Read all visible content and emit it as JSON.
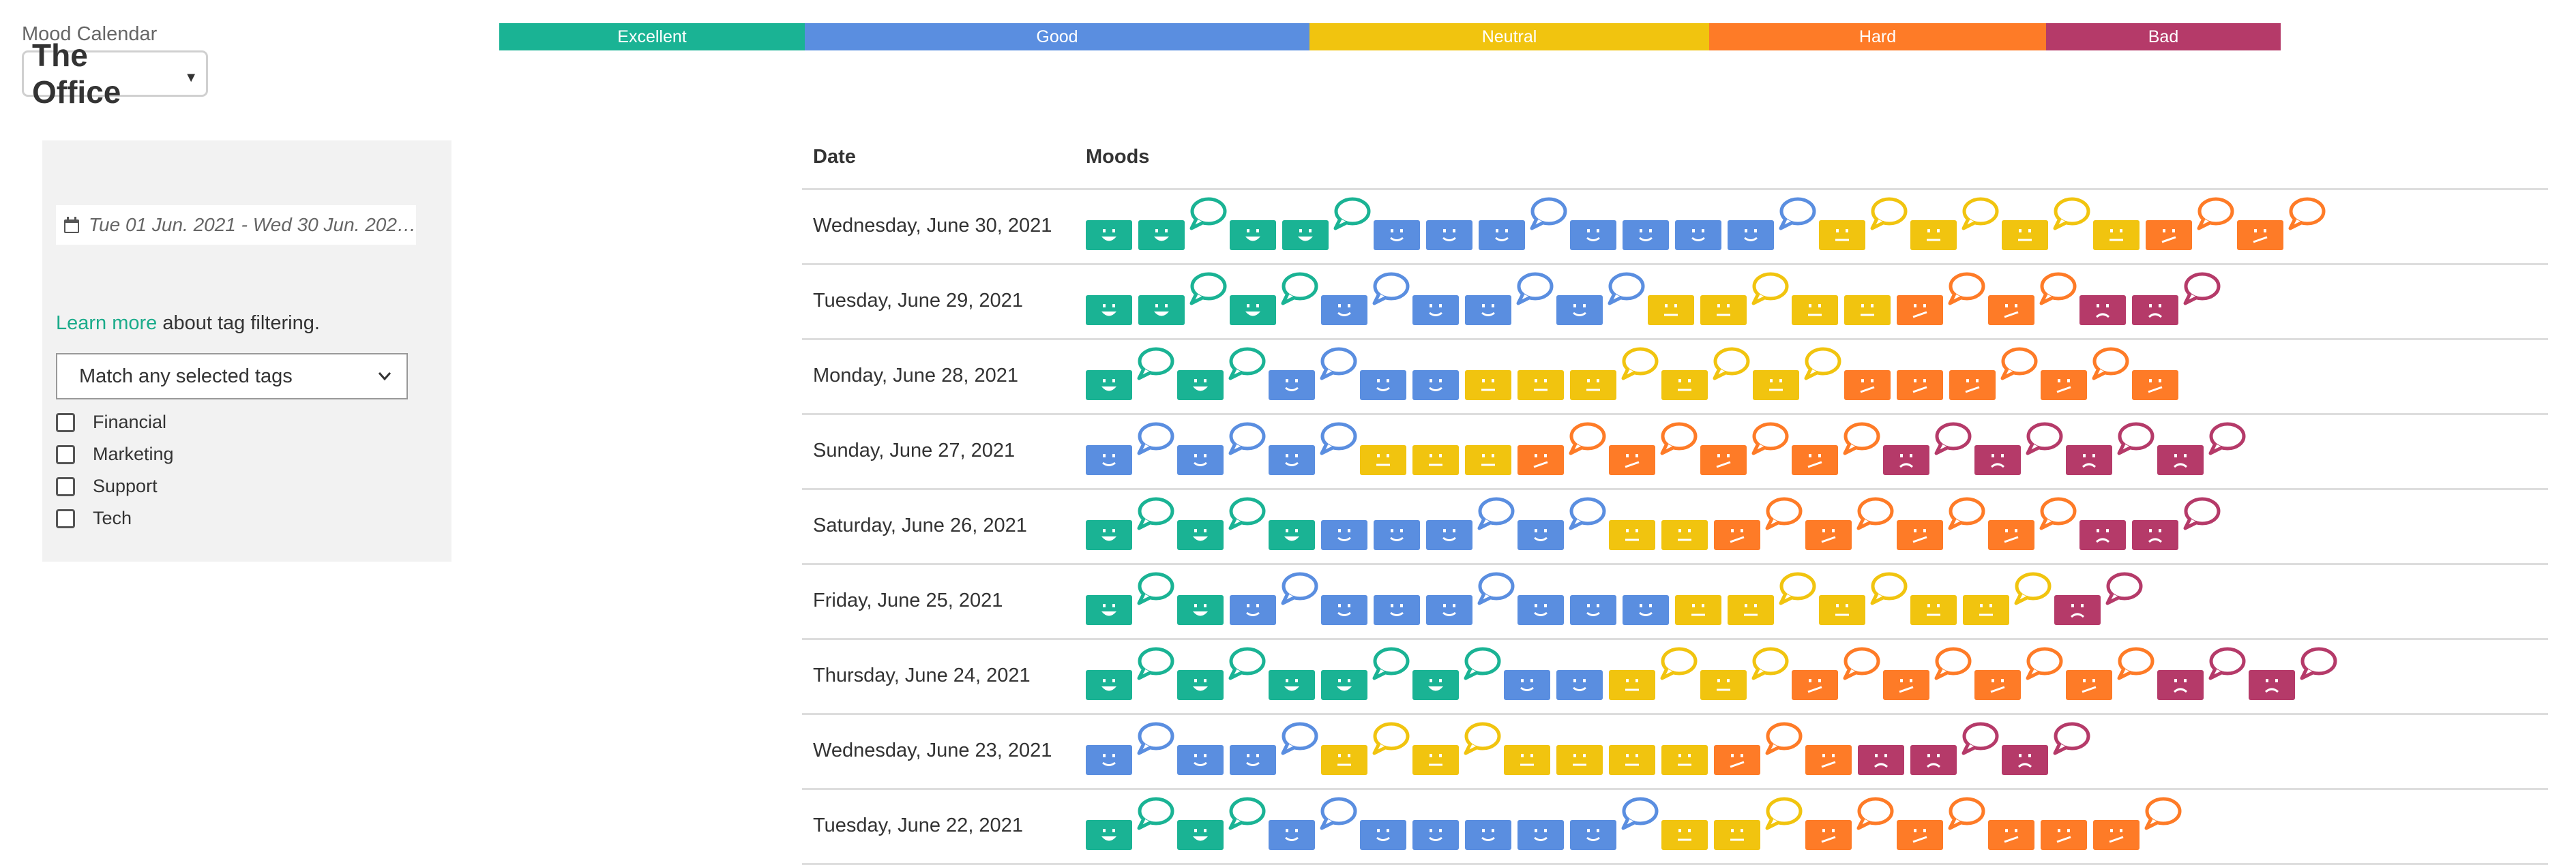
{
  "app": {
    "title": "Mood Calendar",
    "team": "The Office"
  },
  "legend": [
    {
      "label": "Excellent",
      "color": "#1ab394"
    },
    {
      "label": "Good",
      "color": "#5a8ee0"
    },
    {
      "label": "Neutral",
      "color": "#f1c40f"
    },
    {
      "label": "Hard",
      "color": "#fe7b27"
    },
    {
      "label": "Bad",
      "color": "#b53a69"
    }
  ],
  "sidebar": {
    "date_range": "Tue 01 Jun. 2021 - Wed 30 Jun. 202…",
    "learn_more_link": "Learn more",
    "learn_more_rest": " about tag filtering.",
    "match_select": "Match any selected tags",
    "tags": [
      "Financial",
      "Marketing",
      "Support",
      "Tech"
    ]
  },
  "table": {
    "headers": {
      "date": "Date",
      "moods": "Moods"
    },
    "rows": [
      {
        "date": "Wednesday, June 30, 2021",
        "moods": [
          "E",
          "E*",
          "E",
          "E*",
          "G",
          "G",
          "G*",
          "G",
          "G",
          "G",
          "G*",
          "N*",
          "N*",
          "N*",
          "N",
          "H*",
          "H*"
        ]
      },
      {
        "date": "Tuesday, June 29, 2021",
        "moods": [
          "E",
          "E*",
          "E*",
          "G*",
          "G",
          "G*",
          "G*",
          "N",
          "N*",
          "N",
          "N",
          "H*",
          "H*",
          "B",
          "B*"
        ]
      },
      {
        "date": "Monday, June 28, 2021",
        "moods": [
          "E*",
          "E*",
          "G*",
          "G",
          "G",
          "N",
          "N",
          "N*",
          "N*",
          "N*",
          "H",
          "H",
          "H*",
          "H*",
          "H"
        ]
      },
      {
        "date": "Sunday, June 27, 2021",
        "moods": [
          "G*",
          "G*",
          "G*",
          "N",
          "N",
          "N",
          "H*",
          "H*",
          "H*",
          "H*",
          "B*",
          "B*",
          "B*",
          "B*"
        ]
      },
      {
        "date": "Saturday, June 26, 2021",
        "moods": [
          "E*",
          "E*",
          "E",
          "G",
          "G",
          "G*",
          "G*",
          "N",
          "N",
          "H*",
          "H*",
          "H*",
          "H*",
          "B",
          "B*"
        ]
      },
      {
        "date": "Friday, June 25, 2021",
        "moods": [
          "E*",
          "E",
          "G*",
          "G",
          "G",
          "G*",
          "G",
          "G",
          "G",
          "N",
          "N*",
          "N*",
          "N",
          "N*",
          "B*"
        ]
      },
      {
        "date": "Thursday, June 24, 2021",
        "moods": [
          "E*",
          "E*",
          "E",
          "E*",
          "E*",
          "G",
          "G",
          "N*",
          "N*",
          "H*",
          "H*",
          "H*",
          "H*",
          "B*",
          "B*"
        ]
      },
      {
        "date": "Wednesday, June 23, 2021",
        "moods": [
          "G*",
          "G",
          "G*",
          "N*",
          "N*",
          "N",
          "N",
          "N",
          "N",
          "H*",
          "H",
          "B",
          "B*",
          "B*"
        ]
      },
      {
        "date": "Tuesday, June 22, 2021",
        "moods": [
          "E*",
          "E*",
          "G*",
          "G",
          "G",
          "G",
          "G",
          "G*",
          "N",
          "N*",
          "H*",
          "H*",
          "H",
          "H",
          "H*"
        ]
      }
    ]
  }
}
